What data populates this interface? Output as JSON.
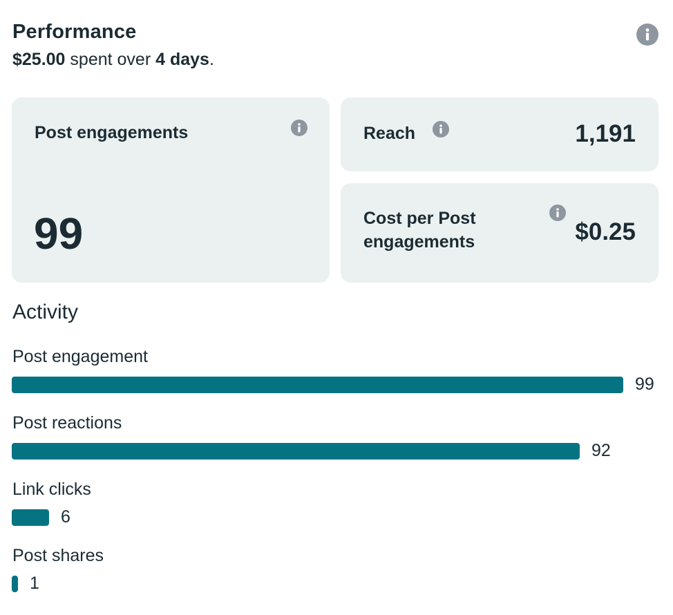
{
  "header": {
    "title": "Performance",
    "amount": "$25.00",
    "spent_text": " spent over ",
    "duration": "4 days",
    "period": "."
  },
  "cards": {
    "post_engagements": {
      "label": "Post engagements",
      "value": "99"
    },
    "reach": {
      "label": "Reach",
      "value": "1,191"
    },
    "cost_per": {
      "label_line1": "Cost per Post",
      "label_line2": "engagements",
      "value": "$0.25"
    }
  },
  "activity": {
    "title": "Activity",
    "max": 99,
    "items": [
      {
        "label": "Post engagement",
        "value": 99
      },
      {
        "label": "Post reactions",
        "value": 92
      },
      {
        "label": "Link clicks",
        "value": 6
      },
      {
        "label": "Post shares",
        "value": 1
      }
    ]
  },
  "colors": {
    "bar": "#067382",
    "card_bg": "#ebf1f1",
    "info_icon": "#8e96a0",
    "text": "#1c2b33"
  }
}
